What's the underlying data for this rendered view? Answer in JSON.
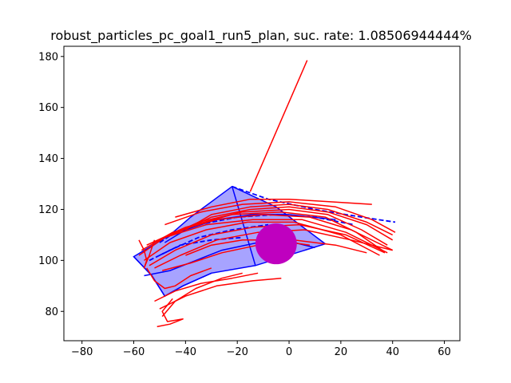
{
  "chart_data": {
    "type": "line",
    "title": "robust_particles_pc_goal1_run5_plan, suc. rate: 1.08506944444%",
    "xlabel": "",
    "ylabel": "",
    "xlim": [
      -87,
      66
    ],
    "ylim": [
      68.5,
      184
    ],
    "xticks": [
      -80,
      -60,
      -40,
      -20,
      0,
      20,
      40,
      60
    ],
    "yticks": [
      80,
      100,
      120,
      140,
      160,
      180
    ],
    "grid": false,
    "goal": {
      "center": [
        -5,
        106.5
      ],
      "radius": 8,
      "color": "#bf00bf"
    },
    "obstacle": {
      "points": [
        [
          -22,
          129
        ],
        [
          -5,
          121
        ],
        [
          14,
          106.5
        ],
        [
          -13,
          98
        ],
        [
          -30,
          95
        ],
        [
          -41,
          90
        ],
        [
          -48,
          86
        ],
        [
          -53,
          94
        ],
        [
          -60,
          101.5
        ],
        [
          -46,
          110
        ],
        [
          -38,
          117
        ],
        [
          -22,
          129
        ]
      ],
      "fill": "#8a84ff",
      "stroke": "#0000ff"
    },
    "plan_dashed": [
      {
        "color": "#0000ff",
        "points": [
          [
            -22,
            129
          ],
          [
            -8,
            124
          ],
          [
            10,
            120
          ],
          [
            28,
            117
          ],
          [
            41,
            115
          ]
        ]
      },
      {
        "color": "#0000ff",
        "points": [
          [
            -50,
            107
          ],
          [
            -44,
            111
          ],
          [
            -35,
            114
          ],
          [
            -20,
            117
          ],
          [
            -5,
            118
          ],
          [
            10,
            117
          ],
          [
            25,
            114
          ]
        ]
      },
      {
        "color": "#0000ff",
        "points": [
          [
            -54,
            100
          ],
          [
            -46,
            104
          ],
          [
            -35,
            109
          ],
          [
            -22,
            112
          ],
          [
            -8,
            114
          ]
        ]
      },
      {
        "color": "#0000ff",
        "points": [
          [
            -50,
            102
          ],
          [
            -42,
            106
          ],
          [
            -30,
            108
          ],
          [
            -18,
            109
          ]
        ]
      }
    ],
    "plan_solid": [
      {
        "color": "#0000ff",
        "points": [
          [
            -22,
            129
          ],
          [
            -13,
            98
          ]
        ]
      },
      {
        "color": "#0000ff",
        "points": [
          [
            -60,
            101.5
          ],
          [
            -53,
            94
          ],
          [
            -48,
            86
          ],
          [
            -41,
            90
          ],
          [
            -30,
            95
          ]
        ]
      },
      {
        "color": "#0000ff",
        "points": [
          [
            -56,
            94
          ],
          [
            -46,
            96
          ],
          [
            -36,
            100
          ],
          [
            -26,
            104
          ],
          [
            -12,
            107
          ],
          [
            0,
            107.5
          ],
          [
            10,
            105
          ]
        ]
      },
      {
        "color": "#0000ff",
        "points": [
          [
            -48,
            107
          ],
          [
            -40,
            112
          ],
          [
            -28,
            116
          ],
          [
            -14,
            118
          ],
          [
            0,
            118
          ],
          [
            18,
            116
          ]
        ]
      }
    ],
    "particles": [
      {
        "color": "#ff0000",
        "points": [
          [
            -15,
            127
          ],
          [
            7,
            178.5
          ]
        ]
      },
      {
        "color": "#ff0000",
        "points": [
          [
            -40,
            112
          ],
          [
            -30,
            118
          ],
          [
            -15,
            121
          ],
          [
            0,
            122
          ],
          [
            15,
            120
          ],
          [
            30,
            115
          ],
          [
            40,
            110
          ]
        ]
      },
      {
        "color": "#ff0000",
        "points": [
          [
            -45,
            110
          ],
          [
            -30,
            117
          ],
          [
            -15,
            120
          ],
          [
            0,
            121
          ],
          [
            15,
            119
          ],
          [
            30,
            114
          ],
          [
            40,
            108
          ]
        ]
      },
      {
        "color": "#ff0000",
        "points": [
          [
            -50,
            108
          ],
          [
            -35,
            115
          ],
          [
            -18,
            119
          ],
          [
            0,
            120
          ],
          [
            15,
            118
          ],
          [
            28,
            112
          ],
          [
            38,
            106
          ]
        ]
      },
      {
        "color": "#ff0000",
        "points": [
          [
            -55,
            106
          ],
          [
            -40,
            113
          ],
          [
            -22,
            118
          ],
          [
            -3,
            119
          ],
          [
            14,
            117
          ],
          [
            26,
            111
          ],
          [
            36,
            104
          ]
        ]
      },
      {
        "color": "#ff0000",
        "points": [
          [
            -57,
            104
          ],
          [
            -45,
            111
          ],
          [
            -28,
            116
          ],
          [
            -10,
            118
          ],
          [
            8,
            117
          ],
          [
            24,
            112
          ],
          [
            40,
            104
          ]
        ]
      },
      {
        "color": "#ff0000",
        "points": [
          [
            -58,
            102
          ],
          [
            -48,
            109
          ],
          [
            -32,
            114
          ],
          [
            -14,
            116
          ],
          [
            5,
            116
          ],
          [
            22,
            111
          ],
          [
            38,
            103
          ]
        ]
      },
      {
        "color": "#ff0000",
        "points": [
          [
            -56,
            100
          ],
          [
            -46,
            107
          ],
          [
            -32,
            112
          ],
          [
            -16,
            115
          ],
          [
            2,
            115
          ],
          [
            20,
            110
          ],
          [
            35,
            102
          ]
        ]
      },
      {
        "color": "#ff0000",
        "points": [
          [
            -54,
            98
          ],
          [
            -44,
            104
          ],
          [
            -30,
            110
          ],
          [
            -14,
            113
          ],
          [
            4,
            114
          ],
          [
            22,
            110
          ],
          [
            37,
            103
          ]
        ]
      },
      {
        "color": "#ff0000",
        "points": [
          [
            -52,
            97
          ],
          [
            -42,
            102
          ],
          [
            -28,
            108
          ],
          [
            -12,
            111
          ],
          [
            6,
            112
          ],
          [
            24,
            108
          ],
          [
            40,
            104
          ]
        ]
      },
      {
        "color": "#ff0000",
        "points": [
          [
            -48,
            114
          ],
          [
            -34,
            119
          ],
          [
            -18,
            122
          ],
          [
            0,
            123
          ],
          [
            18,
            121
          ],
          [
            32,
            116
          ],
          [
            41,
            111
          ]
        ]
      },
      {
        "color": "#ff0000",
        "points": [
          [
            -44,
            117
          ],
          [
            -30,
            121
          ],
          [
            -15,
            124
          ],
          [
            0,
            124
          ],
          [
            16,
            123
          ],
          [
            32,
            122
          ]
        ]
      },
      {
        "color": "#ff0000",
        "points": [
          [
            -49,
            96
          ],
          [
            -38,
            99
          ],
          [
            -26,
            103
          ],
          [
            -12,
            106
          ],
          [
            2,
            108
          ],
          [
            18,
            106
          ],
          [
            30,
            103
          ]
        ]
      },
      {
        "color": "#ff0000",
        "points": [
          [
            -52,
            84
          ],
          [
            -44,
            88
          ],
          [
            -34,
            91
          ],
          [
            -22,
            93
          ],
          [
            -12,
            95
          ]
        ]
      },
      {
        "color": "#ff0000",
        "points": [
          [
            -50,
            81
          ],
          [
            -40,
            86
          ],
          [
            -28,
            90
          ],
          [
            -14,
            92
          ],
          [
            -3,
            93
          ]
        ]
      },
      {
        "color": "#ff0000",
        "points": [
          [
            -49,
            78
          ],
          [
            -44,
            84
          ],
          [
            -36,
            89
          ],
          [
            -26,
            93
          ],
          [
            -18,
            95
          ]
        ]
      },
      {
        "color": "#ff0000",
        "points": [
          [
            -51,
            74
          ],
          [
            -46,
            75
          ],
          [
            -41,
            77
          ],
          [
            -47,
            76
          ],
          [
            -49,
            80
          ],
          [
            -45,
            85
          ]
        ]
      },
      {
        "color": "#ff0000",
        "points": [
          [
            -55,
            97
          ],
          [
            -52,
            92
          ],
          [
            -48,
            89
          ],
          [
            -44,
            90
          ],
          [
            -38,
            94
          ],
          [
            -30,
            97
          ]
        ]
      },
      {
        "color": "#ff0000",
        "points": [
          [
            -58,
            108
          ],
          [
            -56,
            104
          ],
          [
            -55,
            100
          ],
          [
            -56,
            97
          ],
          [
            -54,
            102
          ],
          [
            -52,
            108
          ]
        ]
      },
      {
        "color": "#ff0000",
        "points": [
          [
            -40,
            102
          ],
          [
            -30,
            106
          ],
          [
            -18,
            108
          ],
          [
            -6,
            108
          ],
          [
            8,
            106
          ]
        ]
      }
    ]
  }
}
